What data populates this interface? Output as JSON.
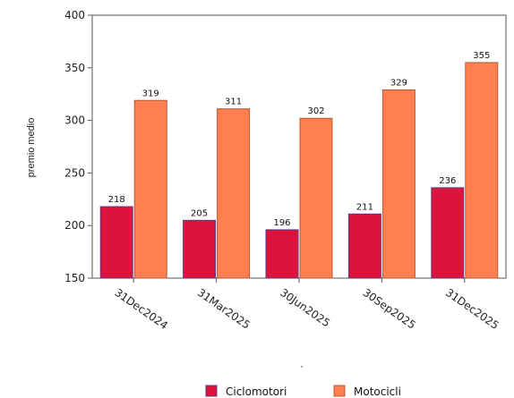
{
  "chart_data": {
    "type": "bar",
    "categories": [
      "31Dec2024",
      "31Mar2025",
      "30Jun2025",
      "30Sep2025",
      "31Dec2025"
    ],
    "series": [
      {
        "name": "Ciclomotori",
        "values": [
          218,
          205,
          196,
          211,
          236
        ],
        "color": "#dc143c"
      },
      {
        "name": "Motocicli",
        "values": [
          319,
          311,
          302,
          329,
          355
        ],
        "color": "#ff7f50"
      }
    ],
    "ylabel": "premio medio",
    "xlabel": "",
    "ylim": [
      150,
      400
    ],
    "yticks": [
      150,
      200,
      250,
      300,
      350,
      400
    ],
    "grid": false,
    "legend_position": "bottom"
  }
}
